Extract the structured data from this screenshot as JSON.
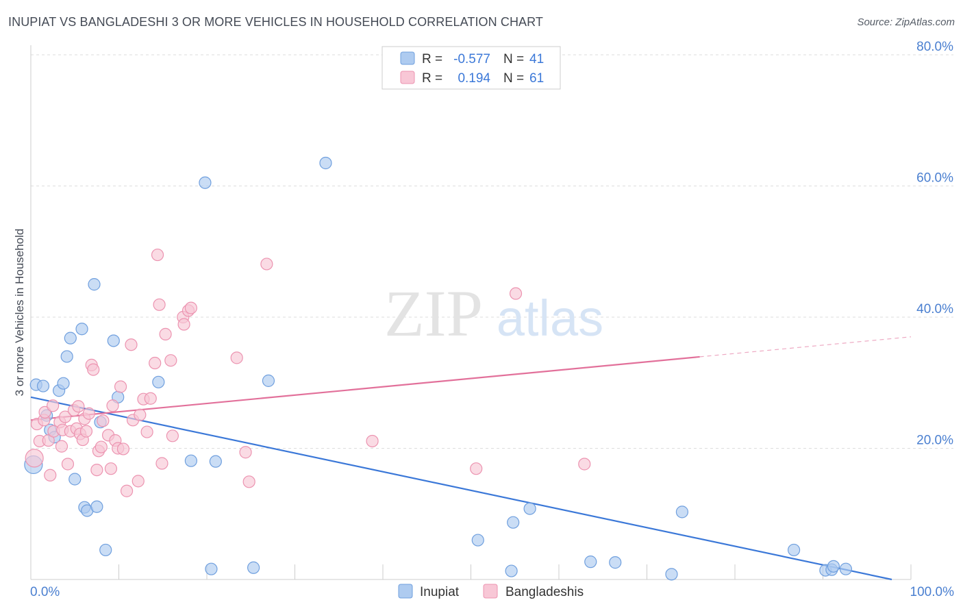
{
  "title": "INUPIAT VS BANGLADESHI 3 OR MORE VEHICLES IN HOUSEHOLD CORRELATION CHART",
  "source": "Source: ZipAtlas.com",
  "watermark": {
    "zip": "ZIP",
    "atlas": "atlas"
  },
  "colors": {
    "blue_fill": "#aecbf0",
    "blue_stroke": "#6f9fde",
    "blue_line": "#3b78d8",
    "pink_fill": "#f8c7d6",
    "pink_stroke": "#ec93b0",
    "pink_line": "#e2709a",
    "tick_label": "#4a7fd0",
    "grid": "#dddddd"
  },
  "legend": {
    "rows": [
      {
        "r_label": "R =",
        "r_value": "-0.577",
        "n_label": "N =",
        "n_value": "41"
      },
      {
        "r_label": "R =",
        "r_value": "0.194",
        "n_label": "N =",
        "n_value": "61"
      }
    ]
  },
  "chart_data": {
    "type": "scatter",
    "title": "INUPIAT VS BANGLADESHI 3 OR MORE VEHICLES IN HOUSEHOLD CORRELATION CHART",
    "xlabel": "",
    "ylabel": "3 or more Vehicles in Household",
    "xlim": [
      0,
      100
    ],
    "ylim": [
      0,
      80
    ],
    "x_tick_labels": [
      "0.0%",
      "100.0%"
    ],
    "y_ticks": [
      20,
      40,
      60,
      80
    ],
    "y_tick_labels": [
      "20.0%",
      "40.0%",
      "60.0%",
      "80.0%"
    ],
    "grid": true,
    "legend_position": "bottom-center",
    "series": [
      {
        "name": "Inupiat",
        "r": -0.577,
        "n": 41,
        "trend": {
          "x0": 0,
          "y0": 27.8,
          "x1": 100,
          "y1": 0.0,
          "solid_until": 100
        },
        "points": [
          [
            0.3,
            17.5
          ],
          [
            0.6,
            29.7
          ],
          [
            1.4,
            29.5
          ],
          [
            1.8,
            25.0
          ],
          [
            2.2,
            22.8
          ],
          [
            2.7,
            21.7
          ],
          [
            3.2,
            28.8
          ],
          [
            3.7,
            29.9
          ],
          [
            4.1,
            34.0
          ],
          [
            4.5,
            36.8
          ],
          [
            5.0,
            15.3
          ],
          [
            5.8,
            38.2
          ],
          [
            6.1,
            11.0
          ],
          [
            6.4,
            10.5
          ],
          [
            7.2,
            45.0
          ],
          [
            7.5,
            11.1
          ],
          [
            7.9,
            24.0
          ],
          [
            8.5,
            4.5
          ],
          [
            9.4,
            36.4
          ],
          [
            9.9,
            27.8
          ],
          [
            14.5,
            30.1
          ],
          [
            18.2,
            18.1
          ],
          [
            19.8,
            60.5
          ],
          [
            20.5,
            1.6
          ],
          [
            21.0,
            18.0
          ],
          [
            25.3,
            1.8
          ],
          [
            27.0,
            30.3
          ],
          [
            33.5,
            63.5
          ],
          [
            50.8,
            6.0
          ],
          [
            54.6,
            1.3
          ],
          [
            54.8,
            8.7
          ],
          [
            56.7,
            10.8
          ],
          [
            63.6,
            2.7
          ],
          [
            66.4,
            2.6
          ],
          [
            72.8,
            0.8
          ],
          [
            74.0,
            10.3
          ],
          [
            86.7,
            4.5
          ],
          [
            90.3,
            1.4
          ],
          [
            91.0,
            1.5
          ],
          [
            91.2,
            2.0
          ],
          [
            92.6,
            1.6
          ]
        ]
      },
      {
        "name": "Bangladeshis",
        "r": 0.194,
        "n": 61,
        "trend": {
          "x0": 0,
          "y0": 24.3,
          "x1": 100,
          "y1": 37.0,
          "solid_until": 76
        },
        "points": [
          [
            0.4,
            18.5
          ],
          [
            0.7,
            23.7
          ],
          [
            1.0,
            21.1
          ],
          [
            1.5,
            24.3
          ],
          [
            1.6,
            25.5
          ],
          [
            2.0,
            21.2
          ],
          [
            2.2,
            15.9
          ],
          [
            2.6,
            22.6
          ],
          [
            2.5,
            26.5
          ],
          [
            3.3,
            24.0
          ],
          [
            3.5,
            20.3
          ],
          [
            3.6,
            22.8
          ],
          [
            3.9,
            24.8
          ],
          [
            4.2,
            17.6
          ],
          [
            4.5,
            22.6
          ],
          [
            4.9,
            25.8
          ],
          [
            5.2,
            23.0
          ],
          [
            5.4,
            26.4
          ],
          [
            5.6,
            22.2
          ],
          [
            5.9,
            21.3
          ],
          [
            6.1,
            24.5
          ],
          [
            6.3,
            22.6
          ],
          [
            6.6,
            25.3
          ],
          [
            6.9,
            32.7
          ],
          [
            7.1,
            32.0
          ],
          [
            7.5,
            16.7
          ],
          [
            7.7,
            19.6
          ],
          [
            8.0,
            20.2
          ],
          [
            8.2,
            24.2
          ],
          [
            8.8,
            22.0
          ],
          [
            9.1,
            16.9
          ],
          [
            9.3,
            26.5
          ],
          [
            9.6,
            21.2
          ],
          [
            9.9,
            20.0
          ],
          [
            10.2,
            29.4
          ],
          [
            10.5,
            19.9
          ],
          [
            10.9,
            13.5
          ],
          [
            11.4,
            35.8
          ],
          [
            11.6,
            24.3
          ],
          [
            12.2,
            15.0
          ],
          [
            12.4,
            25.1
          ],
          [
            12.8,
            27.5
          ],
          [
            13.2,
            22.5
          ],
          [
            13.6,
            27.6
          ],
          [
            14.1,
            33.0
          ],
          [
            14.4,
            49.5
          ],
          [
            14.6,
            41.9
          ],
          [
            14.9,
            17.7
          ],
          [
            15.3,
            37.4
          ],
          [
            15.9,
            33.4
          ],
          [
            16.1,
            21.9
          ],
          [
            17.3,
            40.0
          ],
          [
            17.4,
            38.9
          ],
          [
            17.9,
            41.0
          ],
          [
            18.2,
            41.4
          ],
          [
            23.4,
            33.8
          ],
          [
            24.4,
            19.4
          ],
          [
            24.8,
            14.9
          ],
          [
            26.8,
            48.1
          ],
          [
            38.8,
            21.1
          ],
          [
            50.6,
            16.9
          ]
        ]
      }
    ],
    "extra_points_bangladeshis": [
      [
        55.1,
        43.6
      ],
      [
        62.9,
        17.6
      ]
    ]
  }
}
